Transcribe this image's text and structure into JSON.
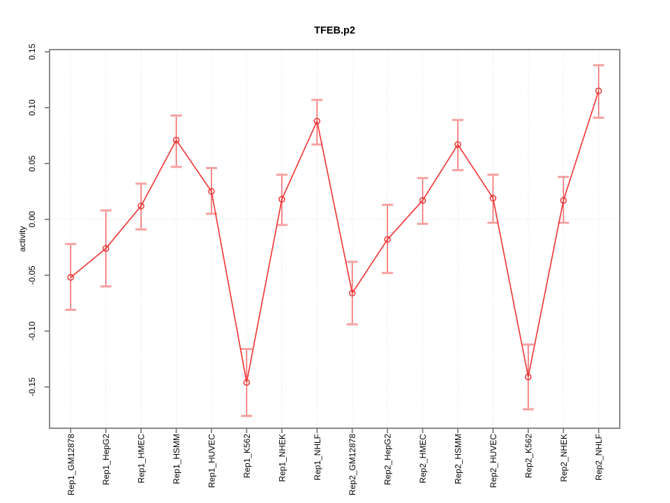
{
  "figure": {
    "title": "TFEB.p2",
    "ylabel": "activity"
  },
  "chart_data": {
    "type": "line",
    "title": "TFEB.p2",
    "xlabel": "",
    "ylabel": "activity",
    "categories": [
      "Rep1_GM12878",
      "Rep1_HepG2",
      "Rep1_HMEC",
      "Rep1_HSMM",
      "Rep1_HUVEC",
      "Rep1_K562",
      "Rep1_NHEK",
      "Rep1_NHLF",
      "Rep2_GM12878",
      "Rep2_HepG2",
      "Rep2_HMEC",
      "Rep2_HSMM",
      "Rep2_HUVEC",
      "Rep2_K562",
      "Rep2_NHEK",
      "Rep2_NHLF"
    ],
    "series": [
      {
        "name": "activity",
        "values": [
          -0.052,
          -0.026,
          0.012,
          0.071,
          0.025,
          -0.146,
          0.018,
          0.088,
          -0.066,
          -0.018,
          0.017,
          0.067,
          0.019,
          -0.141,
          0.017,
          0.115
        ],
        "error_low": [
          -0.081,
          -0.06,
          -0.009,
          0.047,
          0.005,
          -0.176,
          -0.005,
          0.067,
          -0.094,
          -0.048,
          -0.004,
          0.044,
          -0.003,
          -0.17,
          -0.003,
          0.091
        ],
        "error_high": [
          -0.022,
          0.008,
          0.032,
          0.093,
          0.046,
          -0.116,
          0.04,
          0.107,
          -0.038,
          0.013,
          0.037,
          0.089,
          0.04,
          -0.112,
          0.038,
          0.138
        ]
      }
    ],
    "yticks": [
      -0.15,
      -0.1,
      -0.05,
      0.0,
      0.05,
      0.1,
      0.15
    ],
    "ylim": [
      -0.187,
      0.152
    ],
    "xlim": [
      0.4,
      16.6
    ],
    "grid": {
      "vertical_at_categories": true,
      "horizontal_at_zero": true
    },
    "legend": "none",
    "colors": {
      "line": "#f23b3b",
      "point": "#e93636",
      "error_stem": "#f26c6c",
      "error_cap": "#f7a1a1",
      "grid": "#d4d4d4",
      "box": "#7e7e7e",
      "text": "#000000"
    }
  }
}
